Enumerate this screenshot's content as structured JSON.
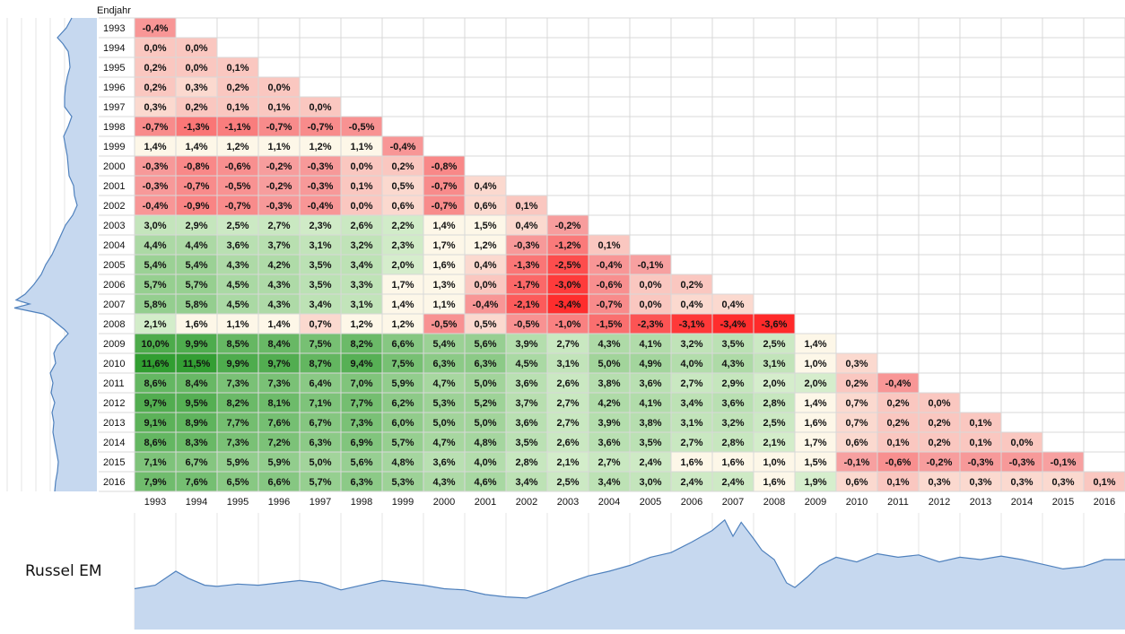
{
  "header": {
    "endjahr_label": "Endjahr"
  },
  "chart_title": "Russel EM",
  "colors": {
    "neg_strong": "#ff2a2a",
    "neg_light": "#f7a0a0",
    "neutral": "#fdf7e8",
    "pos_light": "#d8efcf",
    "pos_strong": "#2e9c2e",
    "grid": "#d8d8d8",
    "area_fill": "#c6d8ef",
    "area_line": "#4f81bd"
  },
  "chart_data": [
    {
      "type": "heatmap",
      "title": "",
      "xlabel": "",
      "ylabel": "Endjahr",
      "start_years": [
        "1993",
        "1994",
        "1995",
        "1996",
        "1997",
        "1998",
        "1999",
        "2000",
        "2001",
        "2002",
        "2003",
        "2004",
        "2005",
        "2006",
        "2007",
        "2008",
        "2009",
        "2010",
        "2011",
        "2012",
        "2013",
        "2014",
        "2015",
        "2016"
      ],
      "end_years": [
        "1993",
        "1994",
        "1995",
        "1996",
        "1997",
        "1998",
        "1999",
        "2000",
        "2001",
        "2002",
        "2003",
        "2004",
        "2005",
        "2006",
        "2007",
        "2008",
        "2009",
        "2010",
        "2011",
        "2012",
        "2013",
        "2014",
        "2015",
        "2016"
      ],
      "rows": [
        [
          "-0,4%"
        ],
        [
          "0,0%",
          "0,0%"
        ],
        [
          "0,2%",
          "0,0%",
          "0,1%"
        ],
        [
          "0,2%",
          "0,3%",
          "0,2%",
          "0,0%"
        ],
        [
          "0,3%",
          "0,2%",
          "0,1%",
          "0,1%",
          "0,0%"
        ],
        [
          "-0,7%",
          "-1,3%",
          "-1,1%",
          "-0,7%",
          "-0,7%",
          "-0,5%"
        ],
        [
          "1,4%",
          "1,4%",
          "1,2%",
          "1,1%",
          "1,2%",
          "1,1%",
          "-0,4%"
        ],
        [
          "-0,3%",
          "-0,8%",
          "-0,6%",
          "-0,2%",
          "-0,3%",
          "0,0%",
          "0,2%",
          "-0,8%"
        ],
        [
          "-0,3%",
          "-0,7%",
          "-0,5%",
          "-0,2%",
          "-0,3%",
          "0,1%",
          "0,5%",
          "-0,7%",
          "0,4%"
        ],
        [
          "-0,4%",
          "-0,9%",
          "-0,7%",
          "-0,3%",
          "-0,4%",
          "0,0%",
          "0,6%",
          "-0,7%",
          "0,6%",
          "0,1%"
        ],
        [
          "3,0%",
          "2,9%",
          "2,5%",
          "2,7%",
          "2,3%",
          "2,6%",
          "2,2%",
          "1,4%",
          "1,5%",
          "0,4%",
          "-0,2%"
        ],
        [
          "4,4%",
          "4,4%",
          "3,6%",
          "3,7%",
          "3,1%",
          "3,2%",
          "2,3%",
          "1,7%",
          "1,2%",
          "-0,3%",
          "-1,2%",
          "0,1%"
        ],
        [
          "5,4%",
          "5,4%",
          "4,3%",
          "4,2%",
          "3,5%",
          "3,4%",
          "2,0%",
          "1,6%",
          "0,4%",
          "-1,3%",
          "-2,5%",
          "-0,4%",
          "-0,1%"
        ],
        [
          "5,7%",
          "5,7%",
          "4,5%",
          "4,3%",
          "3,5%",
          "3,3%",
          "1,7%",
          "1,3%",
          "0,0%",
          "-1,7%",
          "-3,0%",
          "-0,6%",
          "0,0%",
          "0,2%"
        ],
        [
          "5,8%",
          "5,8%",
          "4,5%",
          "4,3%",
          "3,4%",
          "3,1%",
          "1,4%",
          "1,1%",
          "-0,4%",
          "-2,1%",
          "-3,4%",
          "-0,7%",
          "0,0%",
          "0,4%",
          "0,4%"
        ],
        [
          "2,1%",
          "1,6%",
          "1,1%",
          "1,4%",
          "0,7%",
          "1,2%",
          "1,2%",
          "-0,5%",
          "0,5%",
          "-0,5%",
          "-1,0%",
          "-1,5%",
          "-2,3%",
          "-3,1%",
          "-3,4%",
          "-3,6%"
        ],
        [
          "10,0%",
          "9,9%",
          "8,5%",
          "8,4%",
          "7,5%",
          "8,2%",
          "6,6%",
          "5,4%",
          "5,6%",
          "3,9%",
          "2,7%",
          "4,3%",
          "4,1%",
          "3,2%",
          "3,5%",
          "2,5%",
          "1,4%"
        ],
        [
          "11,6%",
          "11,5%",
          "9,9%",
          "9,7%",
          "8,7%",
          "9,4%",
          "7,5%",
          "6,3%",
          "6,3%",
          "4,5%",
          "3,1%",
          "5,0%",
          "4,9%",
          "4,0%",
          "4,3%",
          "3,1%",
          "1,0%",
          "0,3%"
        ],
        [
          "8,6%",
          "8,4%",
          "7,3%",
          "7,3%",
          "6,4%",
          "7,0%",
          "5,9%",
          "4,7%",
          "5,0%",
          "3,6%",
          "2,6%",
          "3,8%",
          "3,6%",
          "2,7%",
          "2,9%",
          "2,0%",
          "2,0%",
          "0,2%",
          "-0,4%"
        ],
        [
          "9,7%",
          "9,5%",
          "8,2%",
          "8,1%",
          "7,1%",
          "7,7%",
          "6,2%",
          "5,3%",
          "5,2%",
          "3,7%",
          "2,7%",
          "4,2%",
          "4,1%",
          "3,4%",
          "3,6%",
          "2,8%",
          "1,4%",
          "0,7%",
          "0,2%",
          "0,0%"
        ],
        [
          "9,1%",
          "8,9%",
          "7,7%",
          "7,6%",
          "6,7%",
          "7,3%",
          "6,0%",
          "5,0%",
          "5,0%",
          "3,6%",
          "2,7%",
          "3,9%",
          "3,8%",
          "3,1%",
          "3,2%",
          "2,5%",
          "1,6%",
          "0,7%",
          "0,2%",
          "0,2%",
          "0,1%"
        ],
        [
          "8,6%",
          "8,3%",
          "7,3%",
          "7,2%",
          "6,3%",
          "6,9%",
          "5,7%",
          "4,7%",
          "4,8%",
          "3,5%",
          "2,6%",
          "3,6%",
          "3,5%",
          "2,7%",
          "2,8%",
          "2,1%",
          "1,7%",
          "0,6%",
          "0,1%",
          "0,2%",
          "0,1%",
          "0,0%"
        ],
        [
          "7,1%",
          "6,7%",
          "5,9%",
          "5,9%",
          "5,0%",
          "5,6%",
          "4,8%",
          "3,6%",
          "4,0%",
          "2,8%",
          "2,1%",
          "2,7%",
          "2,4%",
          "1,6%",
          "1,6%",
          "1,0%",
          "1,5%",
          "-0,1%",
          "-0,6%",
          "-0,2%",
          "-0,3%",
          "-0,3%",
          "-0,1%"
        ],
        [
          "7,9%",
          "7,6%",
          "6,5%",
          "6,6%",
          "5,7%",
          "6,3%",
          "5,3%",
          "4,3%",
          "4,6%",
          "3,4%",
          "2,5%",
          "3,4%",
          "3,0%",
          "2,4%",
          "2,4%",
          "1,6%",
          "1,9%",
          "0,6%",
          "0,1%",
          "0,3%",
          "0,3%",
          "0,3%",
          "0,3%",
          "0,1%"
        ]
      ]
    },
    {
      "type": "area",
      "title": "Russel EM",
      "xlabel": "",
      "ylabel": "",
      "x_range": [
        1993,
        2017
      ],
      "y_range": [
        0,
        100
      ],
      "grid": "vertical-yearly",
      "x": [
        1993,
        1993.5,
        1994,
        1994.3,
        1994.7,
        1995,
        1995.5,
        1996,
        1996.5,
        1997,
        1997.5,
        1998,
        1998.5,
        1999,
        1999.5,
        2000,
        2000.5,
        2001,
        2001.5,
        2002,
        2002.5,
        2003,
        2003.5,
        2004,
        2004.5,
        2005,
        2005.5,
        2006,
        2006.5,
        2007,
        2007.3,
        2007.5,
        2007.7,
        2008,
        2008.2,
        2008.5,
        2008.8,
        2009,
        2009.3,
        2009.6,
        2010,
        2010.5,
        2011,
        2011.5,
        2012,
        2012.5,
        2013,
        2013.5,
        2014,
        2014.5,
        2015,
        2015.5,
        2016,
        2016.5,
        2017
      ],
      "y": [
        35,
        38,
        50,
        44,
        38,
        37,
        39,
        38,
        40,
        42,
        40,
        34,
        38,
        42,
        40,
        38,
        35,
        34,
        30,
        28,
        27,
        33,
        40,
        46,
        50,
        55,
        62,
        66,
        75,
        85,
        94,
        80,
        92,
        78,
        68,
        60,
        40,
        36,
        45,
        55,
        62,
        58,
        65,
        62,
        64,
        58,
        62,
        60,
        63,
        60,
        56,
        52,
        54,
        60,
        60
      ]
    },
    {
      "type": "area",
      "title": "",
      "orientation": "vertical",
      "xlabel": "",
      "ylabel": "",
      "y_range": [
        1993,
        2017
      ],
      "x_range": [
        0,
        100
      ],
      "y": [
        1993,
        1993.5,
        1994,
        1994.3,
        1994.7,
        1995,
        1995.5,
        1996,
        1996.5,
        1997,
        1997.5,
        1998,
        1998.5,
        1999,
        1999.5,
        2000,
        2000.5,
        2001,
        2001.5,
        2002,
        2002.5,
        2003,
        2003.5,
        2004,
        2004.5,
        2005,
        2005.5,
        2006,
        2006.5,
        2007,
        2007.3,
        2007.5,
        2007.7,
        2008,
        2008.2,
        2008.5,
        2008.8,
        2009,
        2009.3,
        2009.6,
        2010,
        2010.5,
        2011,
        2011.5,
        2012,
        2012.5,
        2013,
        2013.5,
        2014,
        2014.5,
        2015,
        2015.5,
        2016,
        2016.5,
        2017
      ],
      "x": [
        28,
        34,
        44,
        38,
        32,
        31,
        30,
        33,
        35,
        36,
        36,
        28,
        32,
        37,
        35,
        33,
        32,
        31,
        26,
        25,
        22,
        27,
        35,
        40,
        45,
        50,
        57,
        62,
        70,
        80,
        90,
        75,
        92,
        60,
        52,
        44,
        36,
        32,
        38,
        44,
        48,
        46,
        52,
        49,
        51,
        47,
        50,
        48,
        49,
        47,
        45,
        43,
        44,
        46,
        47
      ]
    }
  ]
}
